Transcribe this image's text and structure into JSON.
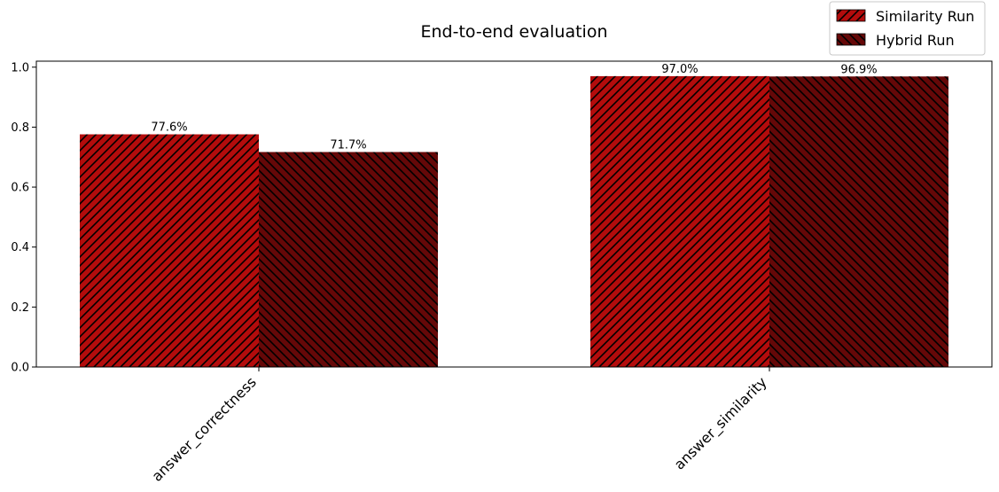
{
  "chart_data": {
    "type": "bar",
    "title": "End-to-end evaluation",
    "categories": [
      "answer_correctness",
      "answer_similarity"
    ],
    "series": [
      {
        "name": "Similarity Run",
        "values": [
          0.776,
          0.97
        ],
        "labels": [
          "77.6%",
          "97.0%"
        ],
        "color": "#b30c0c",
        "hatch": "diagonal-forward"
      },
      {
        "name": "Hybrid Run",
        "values": [
          0.717,
          0.969
        ],
        "labels": [
          "71.7%",
          "96.9%"
        ],
        "color": "#650808",
        "hatch": "diagonal-backward"
      }
    ],
    "xlabel": "",
    "ylabel": "",
    "ylim": [
      0,
      1.02
    ],
    "yticks": [
      0.0,
      0.2,
      0.4,
      0.6,
      0.8,
      1.0
    ],
    "ytick_labels": [
      "0.0",
      "0.2",
      "0.4",
      "0.6",
      "0.8",
      "1.0"
    ],
    "grid": false,
    "legend_position": "top-right"
  }
}
